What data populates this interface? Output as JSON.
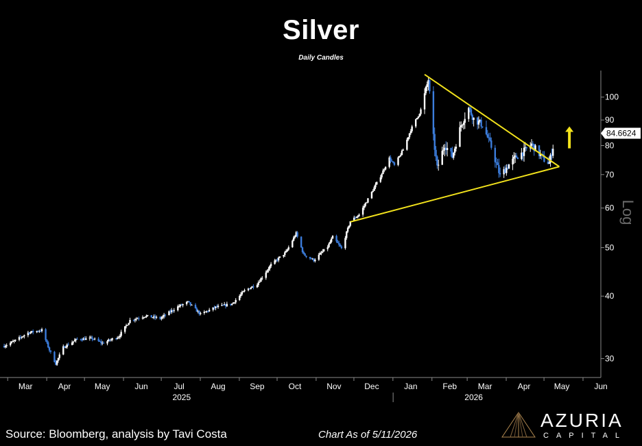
{
  "header": {
    "title": "Silver",
    "subtitle": "Daily Candles"
  },
  "footer": {
    "source": "Source: Bloomberg, analysis by Tavi Costa",
    "date": "Chart As of 5/11/2026"
  },
  "brand": {
    "name": "AZURIA",
    "sub": "CAPITAL"
  },
  "colors": {
    "up": "#ffffff",
    "down": "#3c7ddc",
    "trend": "#f2e21c",
    "axis": "#8a8a8a",
    "label_bg": "#ffffff"
  },
  "chart_data": {
    "type": "candlestick",
    "scale": "log",
    "ylabel": "Log",
    "y_ticks": [
      30,
      40,
      50,
      60,
      70,
      80,
      90,
      100
    ],
    "ylim": [
      27.5,
      113
    ],
    "x_range": [
      "2025-02-26",
      "2026-06-15"
    ],
    "month_ticks": [
      {
        "label": "Mar",
        "date": "2025-03-15"
      },
      {
        "label": "Apr",
        "date": "2025-04-15"
      },
      {
        "label": "May",
        "date": "2025-05-15"
      },
      {
        "label": "Jun",
        "date": "2025-06-15"
      },
      {
        "label": "Jul",
        "date": "2025-07-15"
      },
      {
        "label": "Aug",
        "date": "2025-08-15"
      },
      {
        "label": "Sep",
        "date": "2025-09-15"
      },
      {
        "label": "Oct",
        "date": "2025-10-15"
      },
      {
        "label": "Nov",
        "date": "2025-11-15"
      },
      {
        "label": "Dec",
        "date": "2025-12-15"
      },
      {
        "label": "Jan",
        "date": "2026-01-15"
      },
      {
        "label": "Feb",
        "date": "2026-02-15"
      },
      {
        "label": "Mar",
        "date": "2026-03-15"
      },
      {
        "label": "Apr",
        "date": "2026-04-15"
      },
      {
        "label": "May",
        "date": "2026-05-15"
      },
      {
        "label": "Jun",
        "date": "2026-06-15"
      }
    ],
    "year_labels": [
      {
        "label": "2025",
        "date": "2025-07-17"
      },
      {
        "label": "2026",
        "date": "2026-03-06"
      }
    ],
    "year_divider": "2026-01-01",
    "last_price": 84.6624,
    "last_price_label": "84.6624",
    "series": [
      {
        "date": "2025-02-26",
        "close": 31.8
      },
      {
        "date": "2025-03-07",
        "close": 32.6
      },
      {
        "date": "2025-03-17",
        "close": 33.8
      },
      {
        "date": "2025-03-28",
        "close": 34.2
      },
      {
        "date": "2025-04-03",
        "close": 31.2
      },
      {
        "date": "2025-04-08",
        "close": 29.3
      },
      {
        "date": "2025-04-14",
        "close": 31.6
      },
      {
        "date": "2025-04-25",
        "close": 32.8
      },
      {
        "date": "2025-05-07",
        "close": 32.9
      },
      {
        "date": "2025-05-15",
        "close": 32.2
      },
      {
        "date": "2025-05-28",
        "close": 33.2
      },
      {
        "date": "2025-06-06",
        "close": 35.8
      },
      {
        "date": "2025-06-18",
        "close": 36.5
      },
      {
        "date": "2025-06-30",
        "close": 36.1
      },
      {
        "date": "2025-07-14",
        "close": 38.1
      },
      {
        "date": "2025-07-22",
        "close": 38.9
      },
      {
        "date": "2025-08-01",
        "close": 36.8
      },
      {
        "date": "2025-08-13",
        "close": 38.0
      },
      {
        "date": "2025-08-26",
        "close": 38.6
      },
      {
        "date": "2025-09-05",
        "close": 41.0
      },
      {
        "date": "2025-09-15",
        "close": 42.3
      },
      {
        "date": "2025-09-26",
        "close": 46.2
      },
      {
        "date": "2025-10-08",
        "close": 49.0
      },
      {
        "date": "2025-10-16",
        "close": 53.4
      },
      {
        "date": "2025-10-22",
        "close": 48.4
      },
      {
        "date": "2025-10-30",
        "close": 47.2
      },
      {
        "date": "2025-11-10",
        "close": 50.2
      },
      {
        "date": "2025-11-14",
        "close": 52.5
      },
      {
        "date": "2025-11-21",
        "close": 49.8
      },
      {
        "date": "2025-11-28",
        "close": 56.5
      },
      {
        "date": "2025-12-05",
        "close": 58.2
      },
      {
        "date": "2025-12-12",
        "close": 62.5
      },
      {
        "date": "2025-12-22",
        "close": 69.5
      },
      {
        "date": "2025-12-29",
        "close": 75.5
      },
      {
        "date": "2026-01-02",
        "close": 73.0
      },
      {
        "date": "2026-01-09",
        "close": 78.5
      },
      {
        "date": "2026-01-15",
        "close": 86.0
      },
      {
        "date": "2026-01-23",
        "close": 94.0
      },
      {
        "date": "2026-01-29",
        "close": 108.5
      },
      {
        "date": "2026-02-02",
        "close": 83.0
      },
      {
        "date": "2026-02-05",
        "close": 72.0
      },
      {
        "date": "2026-02-11",
        "close": 80.5
      },
      {
        "date": "2026-02-17",
        "close": 76.0
      },
      {
        "date": "2026-02-24",
        "close": 88.0
      },
      {
        "date": "2026-03-02",
        "close": 95.0
      },
      {
        "date": "2026-03-06",
        "close": 90.5
      },
      {
        "date": "2026-03-13",
        "close": 88.0
      },
      {
        "date": "2026-03-20",
        "close": 79.5
      },
      {
        "date": "2026-03-27",
        "close": 69.5
      },
      {
        "date": "2026-04-02",
        "close": 72.8
      },
      {
        "date": "2026-04-09",
        "close": 76.0
      },
      {
        "date": "2026-04-16",
        "close": 78.2
      },
      {
        "date": "2026-04-21",
        "close": 80.5
      },
      {
        "date": "2026-04-27",
        "close": 77.0
      },
      {
        "date": "2026-05-01",
        "close": 75.0
      },
      {
        "date": "2026-05-05",
        "close": 73.8
      },
      {
        "date": "2026-05-08",
        "close": 79.5
      },
      {
        "date": "2026-05-11",
        "close": 84.66
      }
    ],
    "trendlines": [
      {
        "name": "resistance",
        "from": {
          "date": "2026-01-26",
          "value": 111
        },
        "to": {
          "date": "2026-05-13",
          "value": 72.6
        }
      },
      {
        "name": "support",
        "from": {
          "date": "2025-11-28",
          "value": 56.3
        },
        "to": {
          "date": "2026-05-13",
          "value": 72.6
        }
      }
    ],
    "annotation": {
      "type": "up-arrow",
      "date": "2026-05-21"
    }
  }
}
